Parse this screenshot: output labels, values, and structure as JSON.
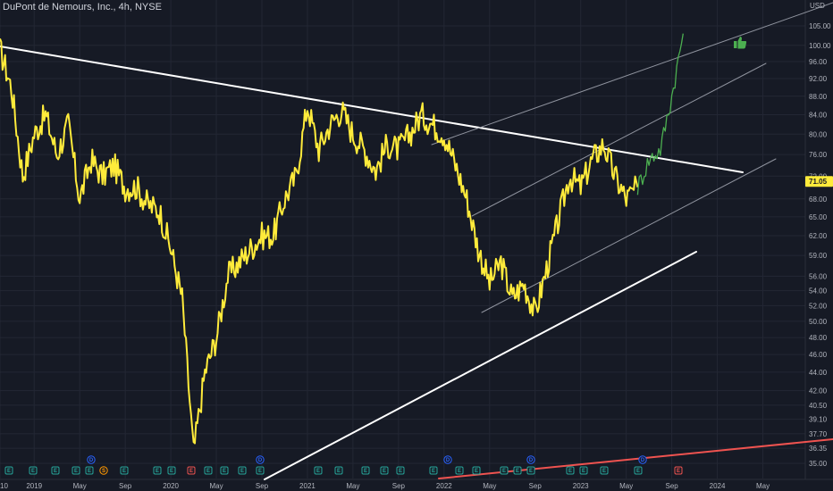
{
  "header": {
    "title": "DuPont de Nemours, Inc., 4h, NYSE"
  },
  "chart_data": {
    "type": "line",
    "title": "DuPont de Nemours, Inc., 4h, NYSE",
    "y_unit": "USD",
    "y_scale": "log",
    "ylim": [
      34.3,
      108
    ],
    "y_ticks": [
      "105.00",
      "100.00",
      "96.00",
      "92.00",
      "88.00",
      "84.00",
      "80.00",
      "76.00",
      "72.00",
      "68.00",
      "65.00",
      "62.00",
      "59.00",
      "56.00",
      "54.00",
      "52.00",
      "50.00",
      "48.00",
      "46.00",
      "44.00",
      "42.00",
      "40.50",
      "39.10",
      "37.70",
      "36.35",
      "35.00"
    ],
    "x_ticks": [
      "10",
      "2019",
      "May",
      "Sep",
      "2020",
      "May",
      "Sep",
      "2021",
      "May",
      "Sep",
      "2022",
      "May",
      "Sep",
      "2023",
      "May",
      "Sep",
      "2024",
      "May"
    ],
    "last_price_label": "71.05",
    "last_price_color": "#ffeb3b",
    "grid": true,
    "series": [
      {
        "color": "#ffeb3b",
        "x": [
          "2018-10",
          "2018-11",
          "2018-12",
          "2019-01",
          "2019-02",
          "2019-03",
          "2019-04",
          "2019-05",
          "2019-06",
          "2019-07",
          "2019-08",
          "2019-09",
          "2019-10",
          "2019-11",
          "2019-12",
          "2020-01",
          "2020-02",
          "2020-03",
          "2020-04",
          "2020-05",
          "2020-06",
          "2020-07",
          "2020-08",
          "2020-09",
          "2020-10",
          "2020-11",
          "2020-12",
          "2021-01",
          "2021-02",
          "2021-03",
          "2021-04",
          "2021-05",
          "2021-06",
          "2021-07",
          "2021-08",
          "2021-09",
          "2021-10",
          "2021-11",
          "2021-12",
          "2022-01",
          "2022-02",
          "2022-03",
          "2022-04",
          "2022-05",
          "2022-06",
          "2022-07",
          "2022-08",
          "2022-09",
          "2022-10",
          "2022-11",
          "2022-12",
          "2023-01",
          "2023-02",
          "2023-03",
          "2023-04",
          "2023-05",
          "2023-06"
        ],
        "values": [
          99,
          90,
          72,
          80,
          84,
          76,
          82,
          68,
          75,
          72,
          74,
          70,
          70,
          67,
          66,
          60,
          53,
          36,
          44,
          48,
          56,
          58,
          60,
          62,
          62,
          68,
          72,
          86,
          77,
          82,
          85,
          80,
          77,
          73,
          78,
          77,
          80,
          84,
          82,
          80,
          74,
          68,
          60,
          55,
          58,
          53,
          55,
          51,
          57,
          64,
          72,
          70,
          75,
          78,
          72,
          68,
          70
        ]
      },
      {
        "color": "#4caf50",
        "x": [
          "2023-06",
          "2023-07",
          "2023-08",
          "2023-09",
          "2023-10"
        ],
        "values": [
          70,
          75,
          77,
          88,
          103
        ]
      }
    ],
    "markers": [
      {
        "label": "E",
        "color": "#26a69a"
      },
      {
        "label": "D",
        "color": "#2962ff"
      },
      {
        "label": "S",
        "color": "#ff9800"
      },
      {
        "label": "E",
        "color": "#ef5350"
      }
    ]
  }
}
